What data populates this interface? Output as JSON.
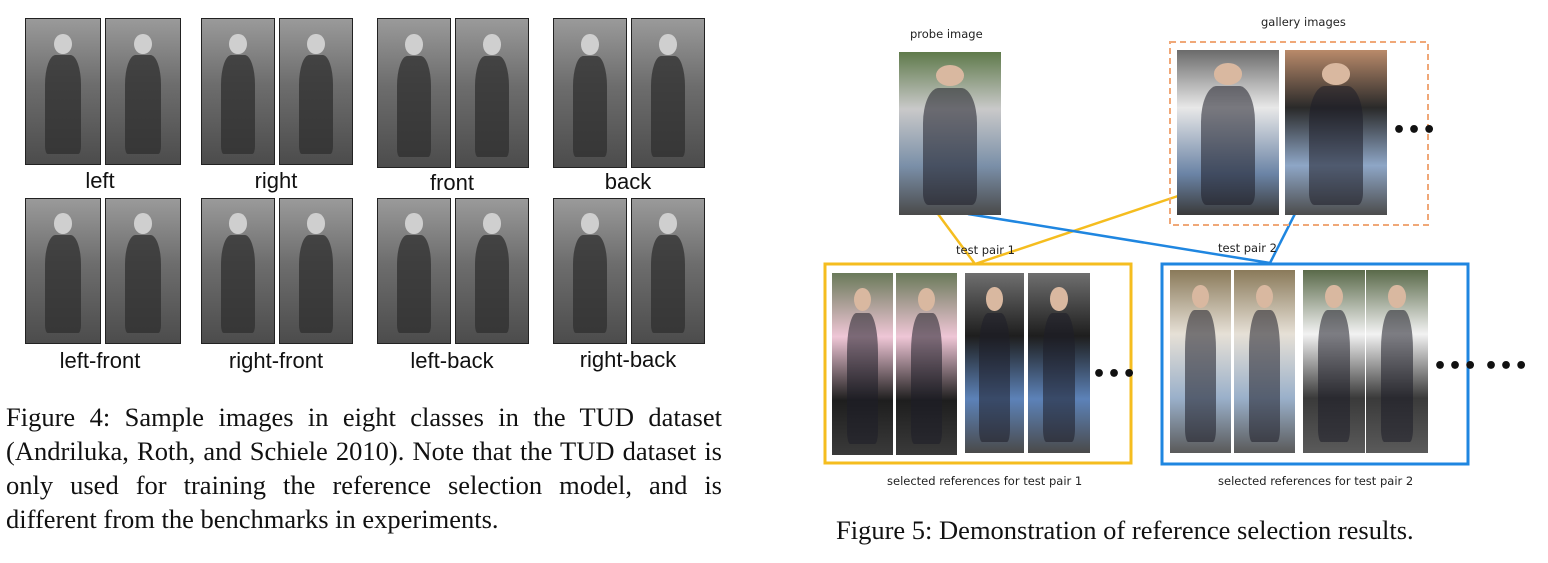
{
  "figure4": {
    "rows": [
      {
        "classes": [
          "left",
          "right",
          "front",
          "back"
        ]
      },
      {
        "classes": [
          "left-front",
          "right-front",
          "left-back",
          "right-back"
        ]
      }
    ],
    "caption": "Figure 4: Sample images in eight classes in the TUD dataset (Andriluka, Roth, and Schiele 2010). Note that the TUD dataset is only used for training the reference selection model, and is different from the benchmarks in experiments."
  },
  "figure5": {
    "probe_label": "probe image",
    "gallery_label": "gallery images",
    "test_pair_1_label": "test pair 1",
    "test_pair_2_label": "test pair 2",
    "selected_1_label": "selected references for test pair 1",
    "selected_2_label": "selected references for test pair 2",
    "ellipsis": "•••",
    "caption": "Figure 5: Demonstration of reference selection results.",
    "colors": {
      "pair1": "#f5bd1f",
      "pair2": "#1f86e0",
      "gallery_box": "#f0a878"
    }
  }
}
